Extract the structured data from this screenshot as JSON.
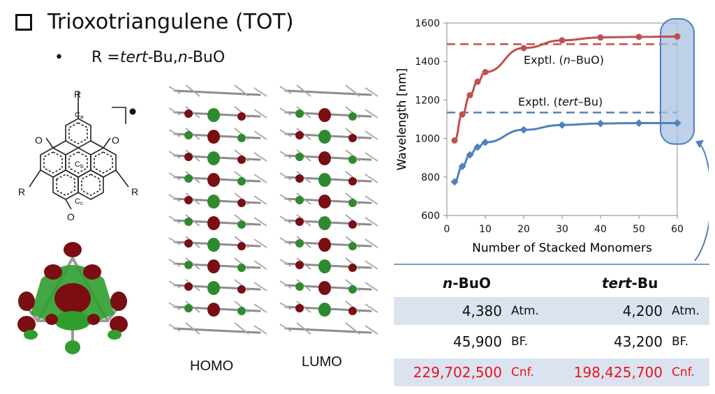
{
  "slide": {
    "title": "Trioxotriangulene (TOT)",
    "bullet": {
      "marker": "•",
      "prefix": "R = ",
      "r1": "tert",
      "r1_suffix": "-Bu, ",
      "r2": "n",
      "r2_suffix": "-BuO"
    }
  },
  "structure": {
    "atom_O": "O",
    "atom_R": "R",
    "label_a": "C",
    "label_a_sub": "a",
    "label_b": "C",
    "label_b_sub": "b",
    "label_c": "C",
    "label_c_sub": "c"
  },
  "orbitals": {
    "homo_label": "HOMO",
    "lumo_label": "LUMO"
  },
  "chart_data": {
    "type": "line",
    "xlabel": "Number of Stacked Monomers",
    "ylabel": "Wavelength [nm]",
    "xlim": [
      0,
      60
    ],
    "ylim": [
      600,
      1600
    ],
    "xticks": [
      0,
      10,
      20,
      30,
      40,
      50,
      60
    ],
    "yticks": [
      600,
      800,
      1000,
      1200,
      1400,
      1600
    ],
    "x": [
      2,
      4,
      6,
      8,
      10,
      20,
      30,
      40,
      50,
      60
    ],
    "series": [
      {
        "name": "n-BuO",
        "marker": "circle",
        "color": "#c0504d",
        "values": [
          990,
          1125,
          1225,
          1295,
          1345,
          1470,
          1510,
          1525,
          1528,
          1530
        ]
      },
      {
        "name": "tert-Bu",
        "marker": "diamond",
        "color": "#4f81bd",
        "values": [
          775,
          855,
          915,
          955,
          980,
          1045,
          1070,
          1078,
          1080,
          1080
        ]
      }
    ],
    "reference_lines": [
      {
        "y": 1490,
        "color": "#c0504d",
        "label_prefix": "Exptl. (",
        "label_italic": "n",
        "label_suffix": "–BuO)"
      },
      {
        "y": 1135,
        "color": "#4f81bd",
        "label_prefix": "Exptl. (",
        "label_italic": "tert",
        "label_suffix": "–Bu)"
      }
    ],
    "grid": false
  },
  "table": {
    "header": {
      "col1_italic": "n",
      "col1_rest": "-BuO",
      "col2_italic": "tert",
      "col2_rest": "-Bu"
    },
    "rows": [
      {
        "v1": "4,380",
        "u1": "Atm.",
        "v2": "4,200",
        "u2": "Atm.",
        "shade": true,
        "red": false
      },
      {
        "v1": "45,900",
        "u1": "BF.",
        "v2": "43,200",
        "u2": "BF.",
        "shade": false,
        "red": false
      },
      {
        "v1": "229,702,500",
        "u1": "Cnf.",
        "v2": "198,425,700",
        "u2": "Cnf.",
        "shade": true,
        "red": true
      }
    ]
  },
  "colors": {
    "accent_red": "#c0504d",
    "accent_blue": "#4f81bd",
    "highlight_fill": "#a9c0e2",
    "table_shade": "#dce3f0",
    "count_red": "#e8141e"
  }
}
